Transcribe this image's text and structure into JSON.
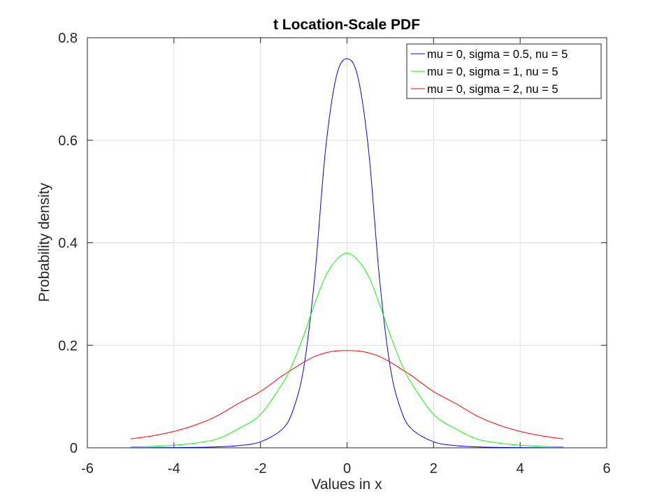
{
  "chart_data": {
    "type": "line",
    "title": "t Location-Scale PDF",
    "xlabel": "Values in x",
    "ylabel": "Probability density",
    "xlim": [
      -6,
      6
    ],
    "ylim": [
      0,
      0.8
    ],
    "x_ticks": [
      "-6",
      "-4",
      "-2",
      "0",
      "2",
      "4",
      "6"
    ],
    "y_ticks": [
      "0",
      "0.2",
      "0.4",
      "0.6",
      "0.8"
    ],
    "grid": true,
    "legend_position": "top-right",
    "x": [
      -5,
      -4.5,
      -4,
      -3.5,
      -3,
      -2.5,
      -2,
      -1.5,
      -1.25,
      -1,
      -0.75,
      -0.5,
      -0.25,
      0,
      0.25,
      0.5,
      0.75,
      1,
      1.25,
      1.5,
      2,
      2.5,
      3,
      3.5,
      4,
      4.5,
      5
    ],
    "series": [
      {
        "name": "mu = 0, sigma = 0.5, nu = 5",
        "color": "#0000ff",
        "values": [
          0.0002,
          0.0003,
          0.0005,
          0.0009,
          0.0019,
          0.0044,
          0.0117,
          0.0362,
          0.0728,
          0.1565,
          0.3302,
          0.5789,
          0.7234,
          0.7592,
          0.7234,
          0.5789,
          0.3302,
          0.1565,
          0.0728,
          0.0362,
          0.0117,
          0.0044,
          0.0019,
          0.0009,
          0.0005,
          0.0003,
          0.0002
        ]
      },
      {
        "name": "mu = 0, sigma = 1, nu = 5",
        "color": "#00ff00",
        "values": [
          0.0018,
          0.0029,
          0.0051,
          0.0094,
          0.0173,
          0.0376,
          0.0651,
          0.1245,
          0.1651,
          0.2196,
          0.2806,
          0.334,
          0.3662,
          0.3796,
          0.3662,
          0.334,
          0.2806,
          0.2196,
          0.1651,
          0.1245,
          0.0651,
          0.0376,
          0.0173,
          0.0094,
          0.0051,
          0.0029,
          0.0018
        ]
      },
      {
        "name": "mu = 0, sigma = 2, nu = 5",
        "color": "#ff0000",
        "values": [
          0.0174,
          0.0233,
          0.032,
          0.0446,
          0.0623,
          0.0869,
          0.1098,
          0.1403,
          0.1538,
          0.167,
          0.1781,
          0.1852,
          0.1889,
          0.1898,
          0.1889,
          0.1852,
          0.1781,
          0.167,
          0.1538,
          0.1403,
          0.1098,
          0.0869,
          0.0623,
          0.0446,
          0.032,
          0.0233,
          0.0174
        ]
      }
    ]
  }
}
